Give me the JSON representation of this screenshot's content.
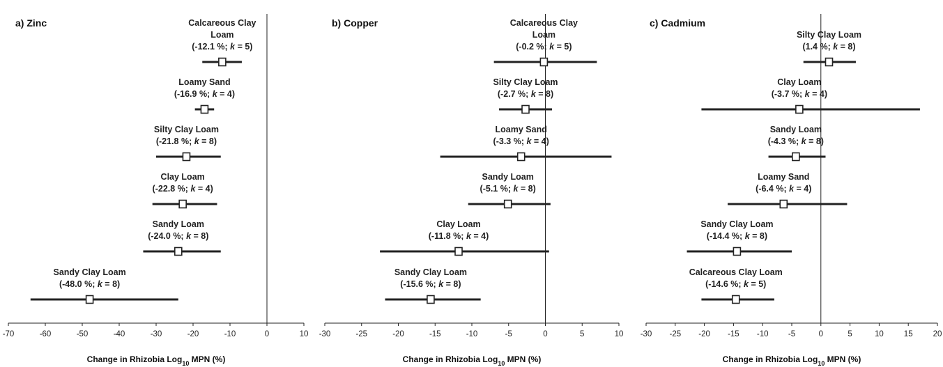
{
  "chart_data": [
    {
      "type": "forest",
      "title": "a) Zinc",
      "xlabel": "Change in Rhizobia  Log10 MPN (%)",
      "xlim": [
        -70,
        10
      ],
      "xticks": [
        -70,
        -60,
        -50,
        -40,
        -30,
        -20,
        -10,
        0,
        10
      ],
      "studies": [
        {
          "name_lines": [
            "Calcareous Clay",
            "Loam"
          ],
          "pct": "-12.1 %",
          "k": "5",
          "estimate": -12.1,
          "ci": [
            -17.5,
            -6.8
          ]
        },
        {
          "name_lines": [
            "Loamy Sand"
          ],
          "pct": "-16.9 %",
          "k": "4",
          "estimate": -16.9,
          "ci": [
            -19.5,
            -14.3
          ]
        },
        {
          "name_lines": [
            "Silty Clay Loam"
          ],
          "pct": "-21.8 %",
          "k": "8",
          "estimate": -21.8,
          "ci": [
            -30.0,
            -12.5
          ]
        },
        {
          "name_lines": [
            "Clay Loam"
          ],
          "pct": "-22.8 %",
          "k": "4",
          "estimate": -22.8,
          "ci": [
            -31.0,
            -13.5
          ]
        },
        {
          "name_lines": [
            "Sandy Loam"
          ],
          "pct": "-24.0 %",
          "k": "8",
          "estimate": -24.0,
          "ci": [
            -33.5,
            -12.5
          ]
        },
        {
          "name_lines": [
            "Sandy Clay Loam"
          ],
          "pct": "-48.0 %",
          "k": "8",
          "estimate": -48.0,
          "ci": [
            -64.0,
            -24.0
          ]
        }
      ]
    },
    {
      "type": "forest",
      "title": "b) Copper",
      "xlabel": "Change in Rhizobia  Log10 MPN (%)",
      "xlim": [
        -30,
        10
      ],
      "xticks": [
        -30,
        -25,
        -20,
        -15,
        -10,
        -5,
        0,
        5,
        10
      ],
      "studies": [
        {
          "name_lines": [
            "Calcareous Clay",
            "Loam"
          ],
          "pct": "-0.2 %",
          "k": "5",
          "estimate": -0.2,
          "ci": [
            -7.0,
            7.0
          ]
        },
        {
          "name_lines": [
            "Silty Clay Loam"
          ],
          "pct": "-2.7 %",
          "k": "8",
          "estimate": -2.7,
          "ci": [
            -6.3,
            0.9
          ]
        },
        {
          "name_lines": [
            "Loamy Sand"
          ],
          "pct": "-3.3 %",
          "k": "4",
          "estimate": -3.3,
          "ci": [
            -14.3,
            9.0
          ]
        },
        {
          "name_lines": [
            "Sandy Loam"
          ],
          "pct": "-5.1 %",
          "k": "8",
          "estimate": -5.1,
          "ci": [
            -10.5,
            0.7
          ]
        },
        {
          "name_lines": [
            "Clay Loam"
          ],
          "pct": "-11.8 %",
          "k": "4",
          "estimate": -11.8,
          "ci": [
            -22.5,
            0.5
          ]
        },
        {
          "name_lines": [
            "Sandy Clay Loam"
          ],
          "pct": "-15.6 %",
          "k": "8",
          "estimate": -15.6,
          "ci": [
            -21.8,
            -8.8
          ]
        }
      ]
    },
    {
      "type": "forest",
      "title": "c) Cadmium",
      "xlabel": "Change in Rhizobia  Log10 MPN (%)",
      "xlim": [
        -30,
        20
      ],
      "xticks": [
        -30,
        -25,
        -20,
        -15,
        -10,
        -5,
        0,
        5,
        10,
        15,
        20
      ],
      "studies": [
        {
          "name_lines": [
            "Silty Clay Loam"
          ],
          "pct": "1.4 %",
          "k": "8",
          "estimate": 1.4,
          "ci": [
            -3.0,
            6.0
          ]
        },
        {
          "name_lines": [
            "Clay Loam"
          ],
          "pct": "-3.7 %",
          "k": "4",
          "estimate": -3.7,
          "ci": [
            -20.5,
            17.0
          ]
        },
        {
          "name_lines": [
            "Sandy Loam"
          ],
          "pct": "-4.3 %",
          "k": "8",
          "estimate": -4.3,
          "ci": [
            -9.0,
            0.8
          ]
        },
        {
          "name_lines": [
            "Loamy Sand"
          ],
          "pct": "-6.4 %",
          "k": "4",
          "estimate": -6.4,
          "ci": [
            -16.0,
            4.5
          ]
        },
        {
          "name_lines": [
            "Sandy Clay Loam"
          ],
          "pct": "-14.4 %",
          "k": "8",
          "estimate": -14.4,
          "ci": [
            -23.0,
            -5.0
          ]
        },
        {
          "name_lines": [
            "Calcareous Clay Loam"
          ],
          "pct": "-14.6 %",
          "k": "5",
          "estimate": -14.6,
          "ci": [
            -20.5,
            -8.0
          ]
        }
      ]
    }
  ]
}
